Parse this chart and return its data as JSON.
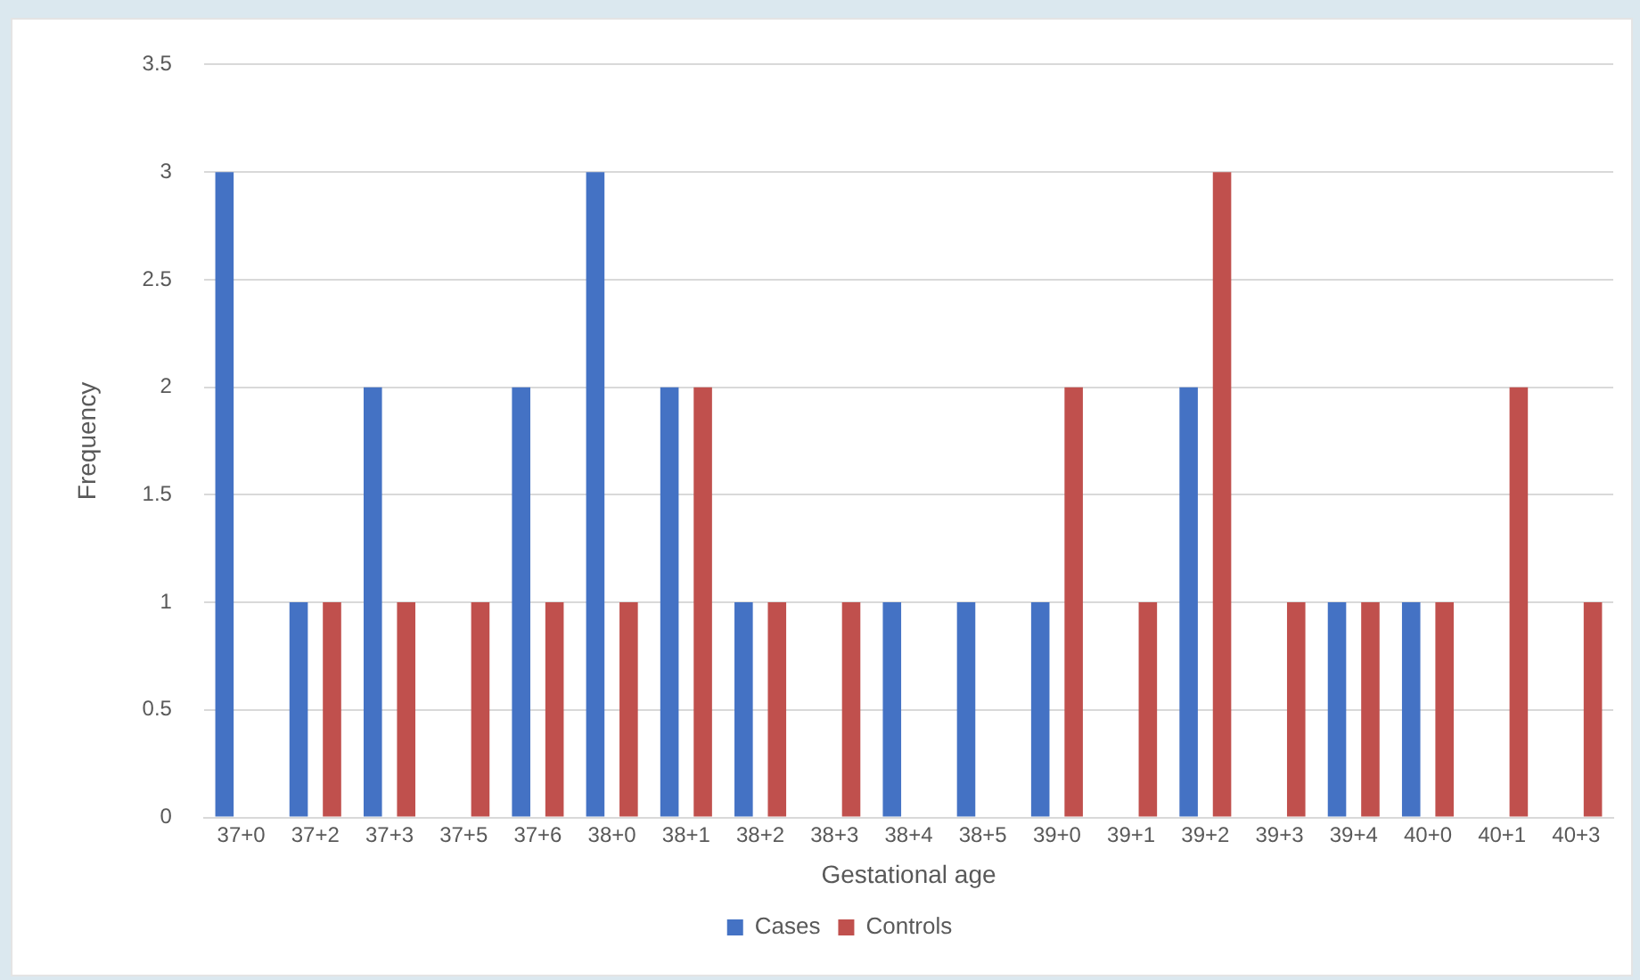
{
  "chart_data": {
    "type": "bar",
    "xlabel": "Gestational age",
    "ylabel": "Frequency",
    "categories": [
      "37+0",
      "37+2",
      "37+3",
      "37+5",
      "37+6",
      "38+0",
      "38+1",
      "38+2",
      "38+3",
      "38+4",
      "38+5",
      "39+0",
      "39+1",
      "39+2",
      "39+3",
      "39+4",
      "40+0",
      "40+1",
      "40+3"
    ],
    "series": [
      {
        "name": "Cases",
        "color": "#4472c4",
        "values": [
          3,
          1,
          2,
          0,
          2,
          3,
          2,
          1,
          0,
          1,
          1,
          1,
          0,
          2,
          0,
          1,
          1,
          0,
          0
        ]
      },
      {
        "name": "Controls",
        "color": "#c0504d",
        "values": [
          0,
          1,
          1,
          1,
          1,
          1,
          2,
          1,
          1,
          0,
          0,
          2,
          1,
          3,
          1,
          1,
          1,
          2,
          1
        ]
      }
    ],
    "ylim": [
      0,
      3.5
    ],
    "yticks": [
      0,
      0.5,
      1,
      1.5,
      2,
      2.5,
      3,
      3.5
    ],
    "grid": "y",
    "legend": "bottom"
  }
}
